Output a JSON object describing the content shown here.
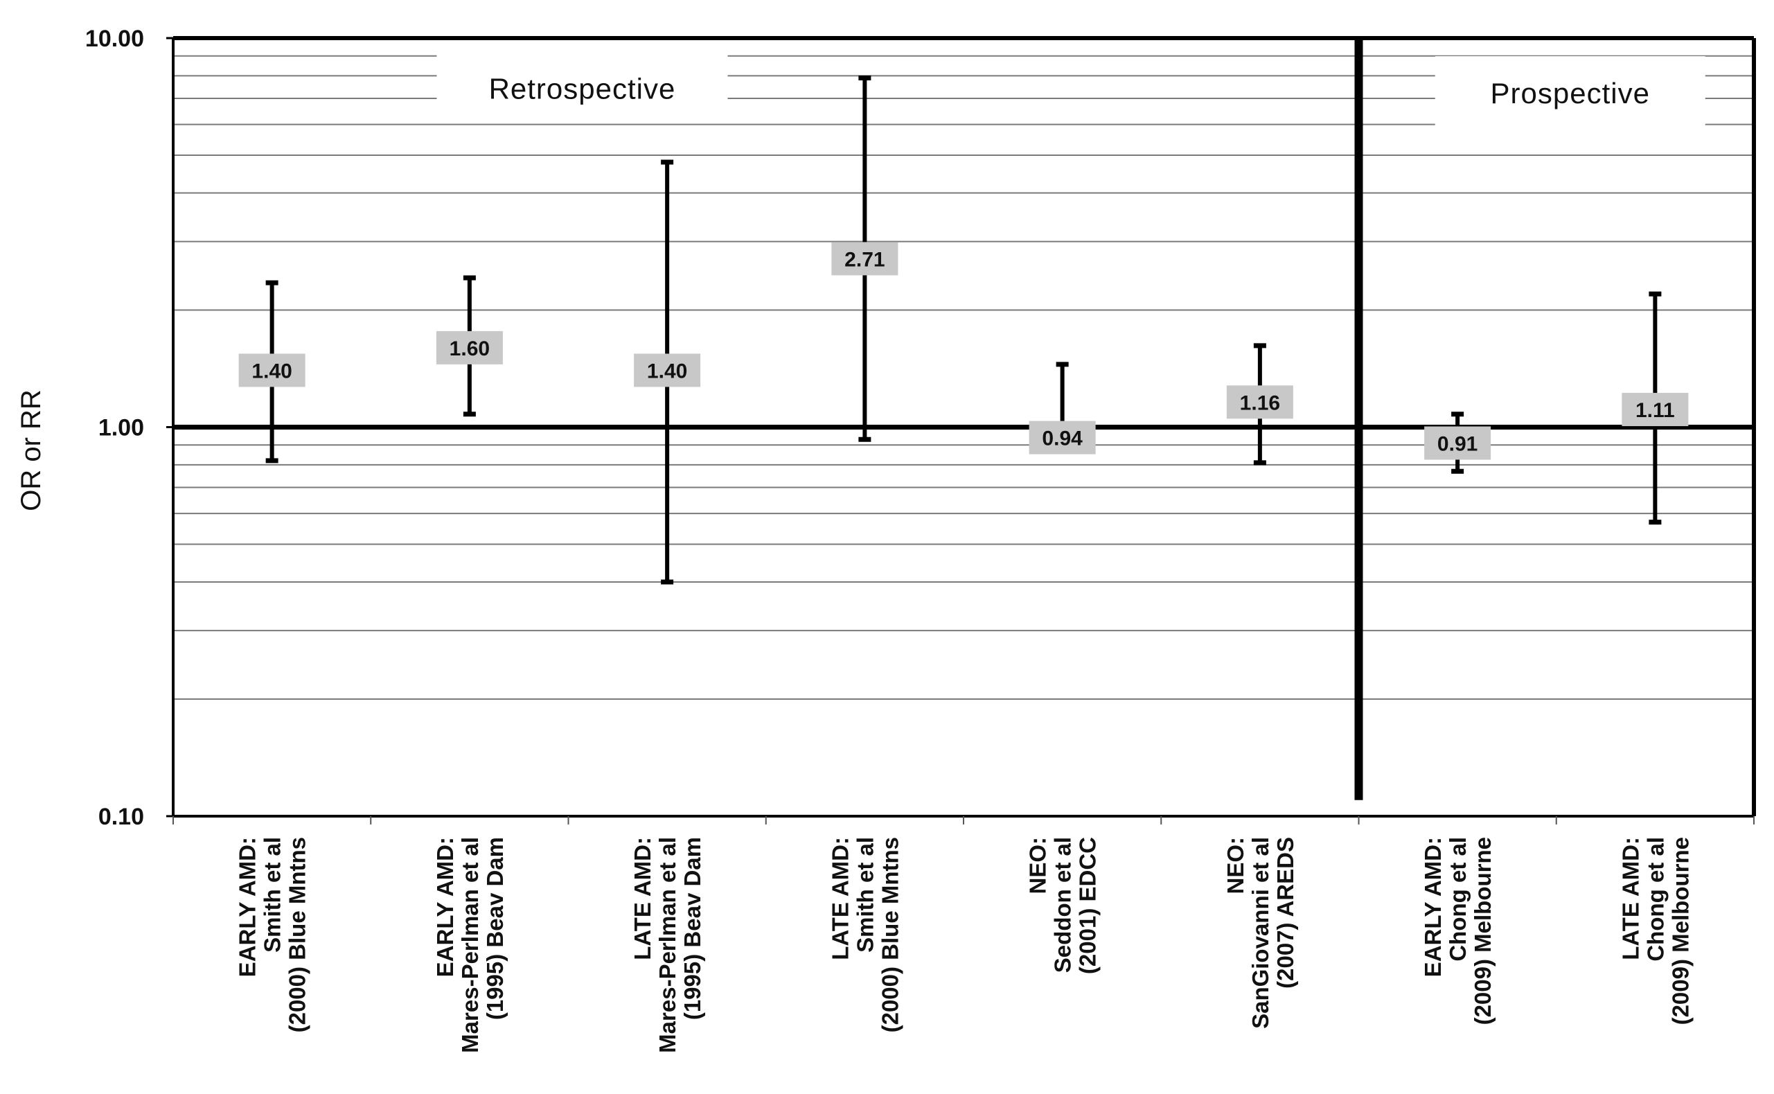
{
  "chart_data": {
    "type": "error-bar",
    "title": "",
    "xlabel": "",
    "ylabel": "OR or RR",
    "yscale": "log",
    "ylim": [
      0.1,
      10
    ],
    "yticks": [
      {
        "value": 10,
        "label": "10.00"
      },
      {
        "value": 1,
        "label": "1.00"
      },
      {
        "value": 0.1,
        "label": "0.10"
      }
    ],
    "reference_line": 1,
    "grid": true,
    "sections": [
      {
        "label": "Retrospective",
        "categories": [
          0,
          1,
          2,
          3,
          4,
          5
        ]
      },
      {
        "label": "Prospective",
        "categories": [
          6,
          7
        ]
      }
    ],
    "categories": [
      {
        "lines": [
          "EARLY AMD:",
          "Smith et al",
          "(2000) Blue Mntns"
        ]
      },
      {
        "lines": [
          "EARLY AMD:",
          "Mares-Perlman et al",
          "(1995) Beav Dam"
        ]
      },
      {
        "lines": [
          "LATE AMD:",
          "Mares-Perlman et al",
          "(1995) Beav Dam"
        ]
      },
      {
        "lines": [
          "LATE AMD:",
          "Smith et al",
          "(2000) Blue Mntns"
        ]
      },
      {
        "lines": [
          "NEO:",
          "Seddon et al",
          "(2001) EDCC"
        ]
      },
      {
        "lines": [
          "NEO:",
          "SanGiovanni et al",
          "(2007) AREDS"
        ]
      },
      {
        "lines": [
          "EARLY AMD:",
          "Chong et al",
          "(2009) Melbourne"
        ]
      },
      {
        "lines": [
          "LATE AMD:",
          "Chong et al",
          "(2009) Melbourne"
        ]
      }
    ],
    "series": [
      {
        "name": "OR or RR",
        "points": [
          {
            "value": 1.4,
            "label": "1.40",
            "ci_low": 0.82,
            "ci_high": 2.35
          },
          {
            "value": 1.6,
            "label": "1.60",
            "ci_low": 1.08,
            "ci_high": 2.42
          },
          {
            "value": 1.4,
            "label": "1.40",
            "ci_low": 0.4,
            "ci_high": 4.8
          },
          {
            "value": 2.71,
            "label": "2.71",
            "ci_low": 0.93,
            "ci_high": 7.9
          },
          {
            "value": 0.94,
            "label": "0.94",
            "ci_low": 0.94,
            "ci_high": 1.45
          },
          {
            "value": 1.16,
            "label": "1.16",
            "ci_low": 0.81,
            "ci_high": 1.62
          },
          {
            "value": 0.91,
            "label": "0.91",
            "ci_low": 0.77,
            "ci_high": 1.08
          },
          {
            "value": 1.11,
            "label": "1.11",
            "ci_low": 0.57,
            "ci_high": 2.2
          }
        ]
      }
    ],
    "divider": {
      "between_categories": [
        5,
        6
      ],
      "ci_low": 0.11,
      "ci_high": 10
    }
  }
}
